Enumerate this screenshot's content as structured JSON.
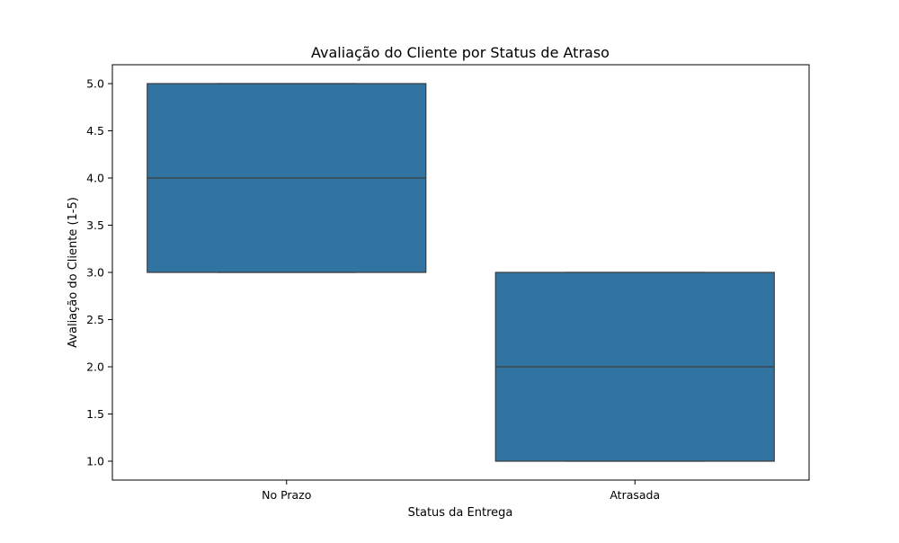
{
  "chart_data": {
    "type": "box",
    "title": "Avaliação do Cliente por Status de Atraso",
    "xlabel": "Status da Entrega",
    "ylabel": "Avaliação do Cliente (1-5)",
    "categories": [
      "No Prazo",
      "Atrasada"
    ],
    "boxes": [
      {
        "category": "No Prazo",
        "min": 3.0,
        "q1": 3.0,
        "median": 4.0,
        "q3": 5.0,
        "max": 5.0
      },
      {
        "category": "Atrasada",
        "min": 1.0,
        "q1": 1.0,
        "median": 2.0,
        "q3": 3.0,
        "max": 3.0
      }
    ],
    "yticks": [
      1.0,
      1.5,
      2.0,
      2.5,
      3.0,
      3.5,
      4.0,
      4.5,
      5.0
    ],
    "ytick_labels": [
      "1.0",
      "1.5",
      "2.0",
      "2.5",
      "3.0",
      "3.5",
      "4.0",
      "4.5",
      "5.0"
    ],
    "ylim": [
      0.8,
      5.2
    ],
    "grid": false,
    "colors": {
      "box_fill": "#3274a1",
      "box_edge": "#3d3d3d",
      "axes": "#000000"
    }
  }
}
